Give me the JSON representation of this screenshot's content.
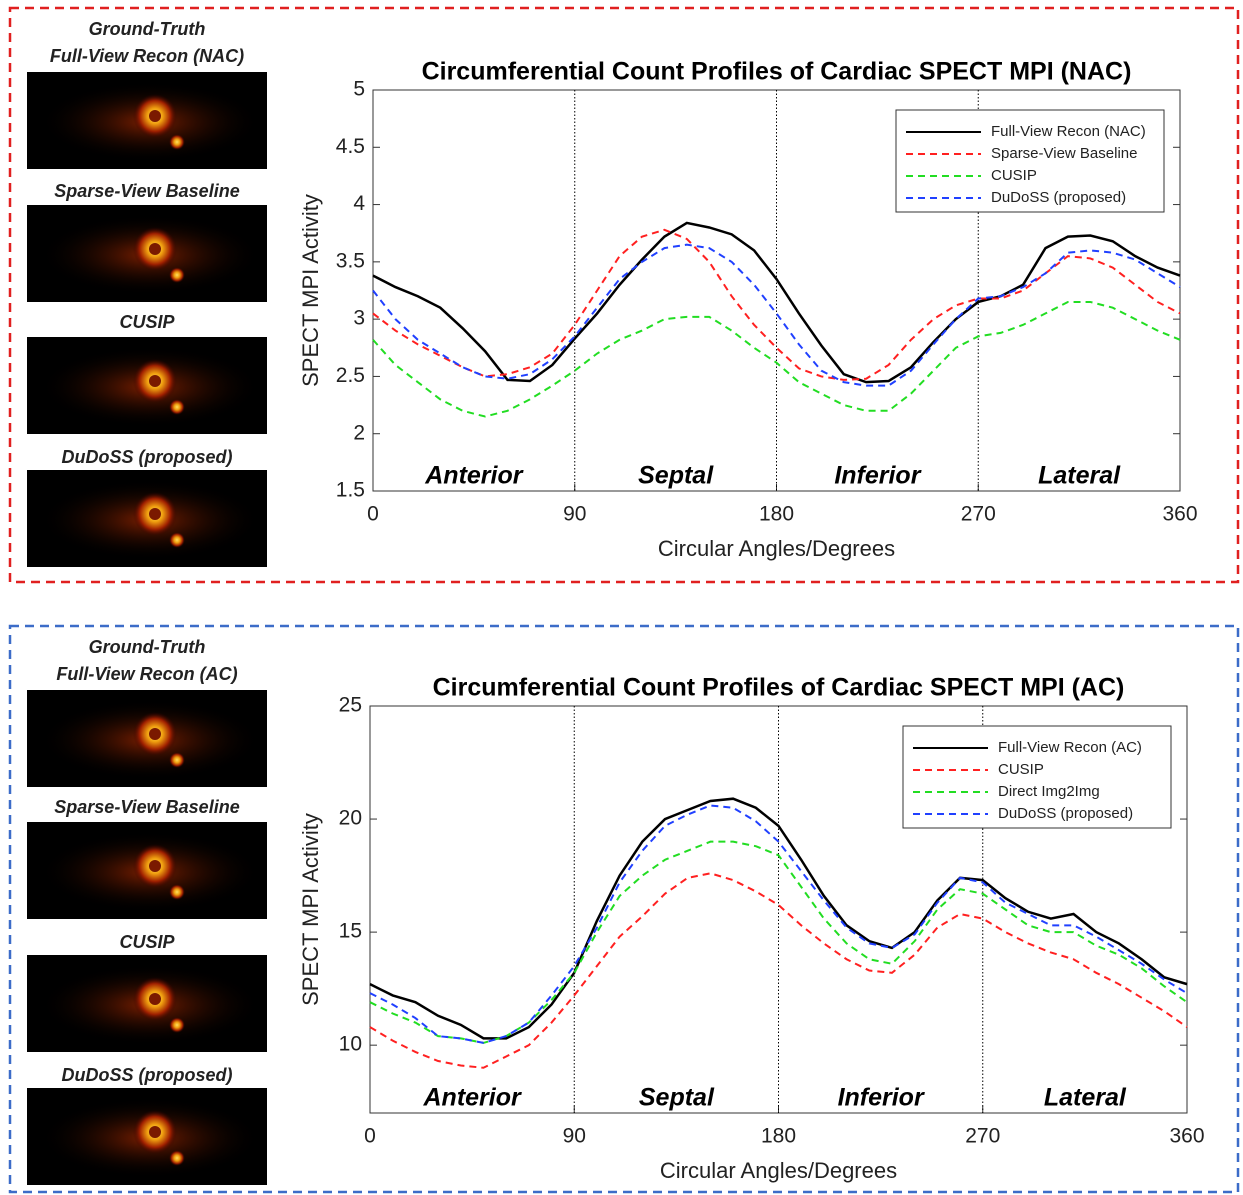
{
  "chart_data": [
    {
      "type": "line",
      "title": "Circumferential Count Profiles of Cardiac SPECT MPI (NAC)",
      "x_label": "Circular Angles/Degrees",
      "y_label": "SPECT MPI Activity",
      "x": [
        0,
        10,
        20,
        30,
        40,
        50,
        60,
        70,
        80,
        90,
        100,
        110,
        120,
        130,
        140,
        150,
        160,
        170,
        180,
        190,
        200,
        210,
        220,
        230,
        240,
        250,
        260,
        270,
        280,
        290,
        300,
        310,
        320,
        330,
        340,
        350,
        360
      ],
      "series": [
        {
          "name": "Full-View Recon (NAC)",
          "color": "#000000",
          "dashed": false,
          "values": [
            3.38,
            3.28,
            3.2,
            3.1,
            2.92,
            2.72,
            2.47,
            2.46,
            2.6,
            2.83,
            3.05,
            3.3,
            3.52,
            3.72,
            3.84,
            3.8,
            3.74,
            3.6,
            3.35,
            3.05,
            2.77,
            2.52,
            2.45,
            2.46,
            2.58,
            2.8,
            3.0,
            3.15,
            3.2,
            3.3,
            3.62,
            3.72,
            3.73,
            3.68,
            3.55,
            3.45,
            3.38
          ]
        },
        {
          "name": "Sparse-View Baseline",
          "color": "#ff2020",
          "dashed": true,
          "values": [
            3.05,
            2.9,
            2.78,
            2.68,
            2.58,
            2.5,
            2.52,
            2.58,
            2.7,
            2.95,
            3.25,
            3.55,
            3.72,
            3.78,
            3.7,
            3.5,
            3.2,
            2.95,
            2.75,
            2.57,
            2.5,
            2.47,
            2.48,
            2.6,
            2.82,
            3.0,
            3.12,
            3.18,
            3.18,
            3.25,
            3.4,
            3.55,
            3.53,
            3.45,
            3.3,
            3.15,
            3.05
          ]
        },
        {
          "name": "CUSIP",
          "color": "#22dd22",
          "dashed": true,
          "values": [
            2.82,
            2.6,
            2.45,
            2.3,
            2.2,
            2.15,
            2.2,
            2.3,
            2.42,
            2.55,
            2.7,
            2.82,
            2.9,
            3.0,
            3.02,
            3.02,
            2.9,
            2.75,
            2.62,
            2.45,
            2.35,
            2.25,
            2.2,
            2.2,
            2.35,
            2.55,
            2.75,
            2.85,
            2.88,
            2.95,
            3.05,
            3.15,
            3.15,
            3.1,
            3.0,
            2.9,
            2.82
          ]
        },
        {
          "name": "DuDoSS (proposed)",
          "color": "#2040ff",
          "dashed": true,
          "values": [
            3.25,
            3.0,
            2.82,
            2.7,
            2.58,
            2.5,
            2.48,
            2.52,
            2.65,
            2.85,
            3.1,
            3.35,
            3.5,
            3.62,
            3.65,
            3.62,
            3.5,
            3.3,
            3.05,
            2.78,
            2.55,
            2.45,
            2.42,
            2.42,
            2.55,
            2.78,
            3.0,
            3.18,
            3.2,
            3.28,
            3.4,
            3.58,
            3.6,
            3.58,
            3.52,
            3.4,
            3.28
          ]
        }
      ],
      "xlim": [
        0,
        360
      ],
      "xticks": [
        0,
        90,
        180,
        270,
        360
      ],
      "ylim": [
        1.5,
        5
      ],
      "yticks": [
        1.5,
        2,
        2.5,
        3,
        3.5,
        4,
        4.5,
        5
      ],
      "dividers": [
        90,
        180,
        270
      ],
      "regions": [
        "Anterior",
        "Septal",
        "Inferior",
        "Lateral"
      ],
      "legend": "upper right"
    },
    {
      "type": "line",
      "title": "Circumferential Count Profiles of Cardiac SPECT MPI (AC)",
      "x_label": "Circular Angles/Degrees",
      "y_label": "SPECT MPI Activity",
      "x": [
        0,
        10,
        20,
        30,
        40,
        50,
        60,
        70,
        80,
        90,
        100,
        110,
        120,
        130,
        140,
        150,
        160,
        170,
        180,
        190,
        200,
        210,
        220,
        230,
        240,
        250,
        260,
        270,
        280,
        290,
        300,
        310,
        320,
        330,
        340,
        350,
        360
      ],
      "series": [
        {
          "name": "Full-View Recon (AC)",
          "color": "#000000",
          "dashed": false,
          "values": [
            12.7,
            12.2,
            11.9,
            11.3,
            10.9,
            10.3,
            10.3,
            10.8,
            11.8,
            13.2,
            15.5,
            17.5,
            19,
            20,
            20.4,
            20.8,
            20.9,
            20.5,
            19.7,
            18.2,
            16.6,
            15.3,
            14.6,
            14.3,
            15,
            16.4,
            17.4,
            17.3,
            16.5,
            15.9,
            15.6,
            15.8,
            15,
            14.5,
            13.8,
            13,
            12.7
          ]
        },
        {
          "name": "CUSIP",
          "color": "#ff2020",
          "dashed": true,
          "values": [
            10.8,
            10.2,
            9.7,
            9.3,
            9.1,
            9,
            9.5,
            10,
            11,
            12.2,
            13.5,
            14.8,
            15.7,
            16.7,
            17.4,
            17.6,
            17.3,
            16.8,
            16.2,
            15.3,
            14.5,
            13.8,
            13.3,
            13.2,
            14,
            15.2,
            15.8,
            15.6,
            15,
            14.5,
            14.1,
            13.8,
            13.2,
            12.7,
            12.1,
            11.5,
            10.8
          ]
        },
        {
          "name": "Direct Img2Img",
          "color": "#22dd22",
          "dashed": true,
          "values": [
            11.9,
            11.4,
            11,
            10.4,
            10.3,
            10.1,
            10.4,
            11,
            12,
            13.2,
            15,
            16.6,
            17.5,
            18.2,
            18.6,
            19,
            19,
            18.8,
            18.4,
            17,
            15.6,
            14.5,
            13.8,
            13.6,
            14.6,
            16,
            16.9,
            16.7,
            16,
            15.3,
            15,
            15,
            14.4,
            14,
            13.4,
            12.6,
            11.9
          ]
        },
        {
          "name": "DuDoSS (proposed)",
          "color": "#2040ff",
          "dashed": true,
          "values": [
            12.3,
            11.8,
            11.2,
            10.4,
            10.3,
            10.1,
            10.4,
            11,
            12.2,
            13.5,
            15.2,
            17.2,
            18.6,
            19.7,
            20.2,
            20.6,
            20.5,
            19.9,
            19,
            17.7,
            16.4,
            15.2,
            14.5,
            14.3,
            14.9,
            16.3,
            17.4,
            17.2,
            16.3,
            15.8,
            15.3,
            15.3,
            14.8,
            14.2,
            13.6,
            12.9,
            12.3
          ]
        }
      ],
      "xlim": [
        0,
        360
      ],
      "xticks": [
        0,
        90,
        180,
        270,
        360
      ],
      "ylim": [
        7,
        25
      ],
      "yticks": [
        10,
        15,
        20,
        25
      ],
      "dividers": [
        90,
        180,
        270
      ],
      "regions": [
        "Anterior",
        "Septal",
        "Inferior",
        "Lateral"
      ],
      "legend": "upper right"
    }
  ],
  "panels": [
    {
      "captions": [
        [
          "Ground-Truth",
          "Full-View Recon (NAC)"
        ],
        [
          "Sparse-View Baseline"
        ],
        [
          "CUSIP"
        ],
        [
          "DuDoSS (proposed)"
        ]
      ]
    },
    {
      "captions": [
        [
          "Ground-Truth",
          "Full-View Recon (AC)"
        ],
        [
          "Sparse-View Baseline"
        ],
        [
          "CUSIP"
        ],
        [
          "DuDoSS (proposed)"
        ]
      ]
    }
  ]
}
